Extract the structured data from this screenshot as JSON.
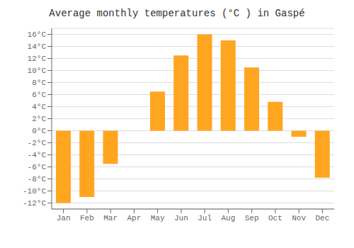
{
  "chart_data": {
    "type": "bar",
    "title": "Average monthly temperatures (°C ) in Gaspé",
    "categories": [
      "Jan",
      "Feb",
      "Mar",
      "Apr",
      "May",
      "Jun",
      "Jul",
      "Aug",
      "Sep",
      "Oct",
      "Nov",
      "Dec"
    ],
    "values": [
      -12,
      -11,
      -5.5,
      0,
      6.5,
      12.5,
      16,
      15,
      10.5,
      4.8,
      -1,
      -7.8
    ],
    "color": "#FFA520",
    "ylim": [
      -13,
      17
    ],
    "yticks": [
      {
        "value": -12,
        "label": "-12°C"
      },
      {
        "value": -10,
        "label": "-10°C"
      },
      {
        "value": -8,
        "label": "-8°C"
      },
      {
        "value": -6,
        "label": "-6°C"
      },
      {
        "value": -4,
        "label": "-4°C"
      },
      {
        "value": -2,
        "label": "-2°C"
      },
      {
        "value": 0,
        "label": "0°C"
      },
      {
        "value": 2,
        "label": "2°C"
      },
      {
        "value": 4,
        "label": "4°C"
      },
      {
        "value": 6,
        "label": "6°C"
      },
      {
        "value": 8,
        "label": "8°C"
      },
      {
        "value": 10,
        "label": "10°C"
      },
      {
        "value": 12,
        "label": "12°C"
      },
      {
        "value": 14,
        "label": "14°C"
      },
      {
        "value": 16,
        "label": "16°C"
      }
    ],
    "grid": true
  }
}
